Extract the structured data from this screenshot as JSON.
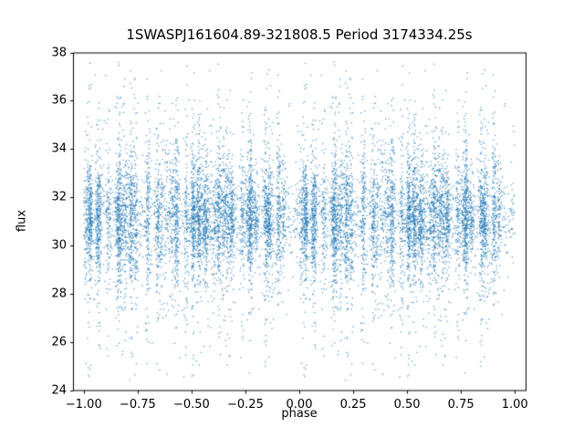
{
  "chart_data": {
    "type": "scatter",
    "title": "1SWASPJ161604.89-321808.5 Period 3174334.25s",
    "xlabel": "phase",
    "ylabel": "flux",
    "xlim": [
      -1.05,
      1.05
    ],
    "ylim": [
      24,
      38
    ],
    "xtick_values": [
      -1.0,
      -0.75,
      -0.5,
      -0.25,
      0.0,
      0.25,
      0.5,
      0.75,
      1.0
    ],
    "xtick_labels": [
      "−1.00",
      "−0.75",
      "−0.50",
      "−0.25",
      "0.00",
      "0.25",
      "0.50",
      "0.75",
      "1.00"
    ],
    "ytick_values": [
      24,
      26,
      28,
      30,
      32,
      34,
      36,
      38
    ],
    "ytick_labels": [
      "24",
      "26",
      "28",
      "30",
      "32",
      "34",
      "36",
      "38"
    ],
    "grid": false,
    "legend": null,
    "marker_color": "#1f77b4",
    "marker_alpha": 0.75,
    "marker_size_px": 1.25,
    "background": "#ffffff",
    "axes_color": "#000000",
    "scatter_generation": {
      "comment": "Dense folded light-curve scatter; base phases in [0,1] duplicated at phase-1, clustered in narrow vertical bands, flux mixture centered near 31",
      "seed": 1616,
      "n_base_points": 6500,
      "band_count": 55,
      "band_sigma": 0.006,
      "band_spread_min": 0.6,
      "band_spread_max": 2.2,
      "uniform_fraction": 0.18,
      "flux_mixture": [
        {
          "weight": 0.72,
          "mean": 31.15,
          "sigma": 0.85
        },
        {
          "weight": 0.22,
          "mean": 31.0,
          "sigma": 1.9
        },
        {
          "weight": 0.06,
          "mean": 31.0,
          "sigma": 3.2
        }
      ],
      "flux_min": 24.4,
      "flux_max": 37.6
    }
  }
}
